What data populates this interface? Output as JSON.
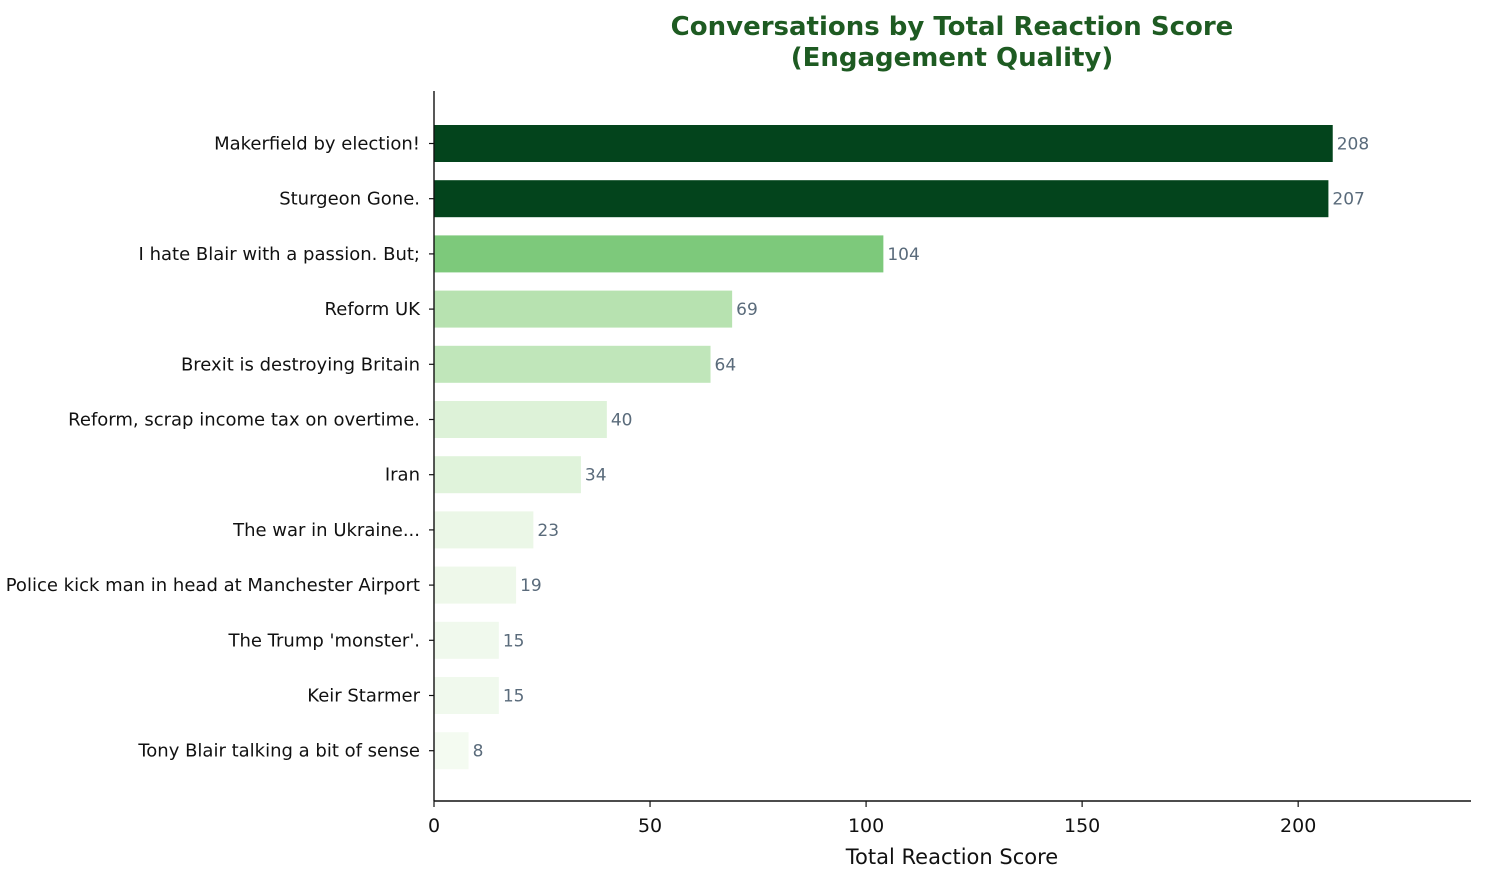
{
  "chart_data": {
    "type": "bar",
    "orientation": "horizontal",
    "title_line1": "Conversations by Total Reaction Score",
    "title_line2": "(Engagement Quality)",
    "title_color": "#1e5b22",
    "xlabel": "Total Reaction Score",
    "ylabel": "",
    "xlim": [
      0,
      240
    ],
    "xticks": [
      0,
      50,
      100,
      150,
      200
    ],
    "grid": false,
    "legend": "none",
    "value_label_color": "#5a6b7b",
    "categories": [
      "Makerfield by election!",
      "Sturgeon Gone.",
      "I hate Blair with a passion. But;",
      "Reform UK",
      "Brexit is destroying Britain",
      "Reform, scrap income tax on overtime.",
      "Iran",
      "The war in Ukraine...",
      "Police kick man in head at Manchester Airport",
      "The Trump 'monster'.",
      "Keir Starmer",
      "Tony Blair talking a bit of sense"
    ],
    "values": [
      208,
      207,
      104,
      69,
      64,
      40,
      34,
      23,
      19,
      15,
      15,
      8
    ],
    "bar_colors": [
      "#03441c",
      "#03441c",
      "#7dc97b",
      "#b7e2b0",
      "#c0e6ba",
      "#ddf2d8",
      "#e0f3db",
      "#ebf7e7",
      "#eef8ea",
      "#f0f9ed",
      "#f0f9ed",
      "#f4fbf1"
    ]
  }
}
